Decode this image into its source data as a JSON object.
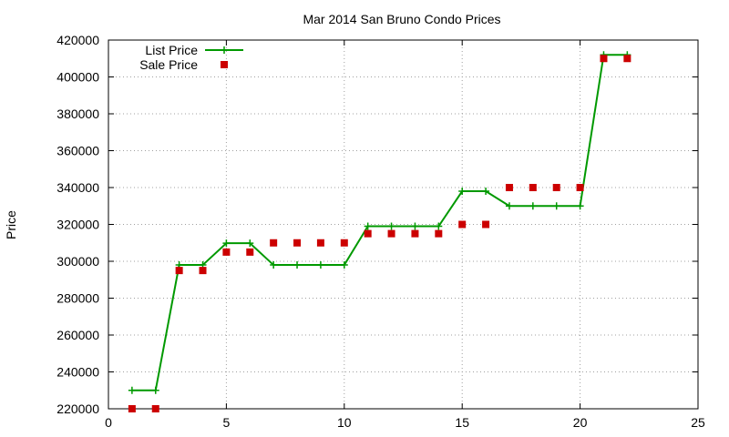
{
  "chart_data": {
    "type": "line",
    "title": "Mar 2014 San Bruno Condo Prices",
    "xlabel": "",
    "ylabel": "Price",
    "xlim": [
      0,
      25
    ],
    "ylim": [
      220000,
      420000
    ],
    "x_ticks": [
      0,
      5,
      10,
      15,
      20,
      25
    ],
    "y_ticks": [
      220000,
      240000,
      260000,
      280000,
      300000,
      320000,
      340000,
      360000,
      380000,
      400000,
      420000
    ],
    "grid": true,
    "legend_position": "top-left",
    "series": [
      {
        "name": "List Price",
        "style": "lines+cross-points",
        "color": "#009900",
        "x": [
          1,
          2,
          3,
          4,
          5,
          6,
          7,
          8,
          9,
          10,
          11,
          12,
          13,
          14,
          15,
          16,
          17,
          18,
          19,
          20,
          21,
          22
        ],
        "y": [
          230000,
          230000,
          298000,
          298000,
          309800,
          309800,
          298000,
          298000,
          298000,
          298000,
          319000,
          319000,
          319000,
          319000,
          338000,
          338000,
          330000,
          330000,
          330000,
          330000,
          412000,
          412000
        ]
      },
      {
        "name": "Sale Price",
        "style": "square-points",
        "color": "#cc0000",
        "x": [
          1,
          2,
          3,
          4,
          5,
          6,
          7,
          8,
          9,
          10,
          11,
          12,
          13,
          14,
          15,
          16,
          17,
          18,
          19,
          20,
          21,
          22
        ],
        "y": [
          220000,
          220000,
          295000,
          295000,
          305000,
          305000,
          310000,
          310000,
          310000,
          310000,
          315000,
          315000,
          315000,
          315000,
          320000,
          320000,
          340000,
          340000,
          340000,
          340000,
          410000,
          410000
        ]
      }
    ]
  }
}
